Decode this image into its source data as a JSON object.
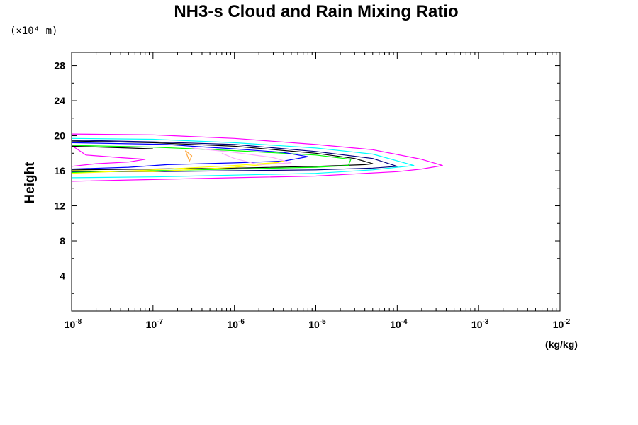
{
  "chart_data": {
    "type": "line",
    "title": "NH3-s Cloud and Rain Mixing Ratio",
    "y_unit_note": "(×10⁴ m)",
    "ylabel": "Height",
    "xlabel": "(kg/kg)",
    "x_scale": "log",
    "xlim": [
      1e-08,
      0.01
    ],
    "ylim": [
      0,
      29.5
    ],
    "x_ticks": [
      {
        "value": 1e-08,
        "base": "10",
        "exp": "-8"
      },
      {
        "value": 1e-07,
        "base": "10",
        "exp": "-7"
      },
      {
        "value": 1e-06,
        "base": "10",
        "exp": "-6"
      },
      {
        "value": 1e-05,
        "base": "10",
        "exp": "-5"
      },
      {
        "value": 0.0001,
        "base": "10",
        "exp": "-4"
      },
      {
        "value": 0.001,
        "base": "10",
        "exp": "-3"
      },
      {
        "value": 0.01,
        "base": "10",
        "exp": "-2"
      }
    ],
    "y_ticks": [
      "4",
      "8",
      "12",
      "16",
      "20",
      "24",
      "28"
    ],
    "y_tick_values": [
      4,
      8,
      12,
      16,
      20,
      24,
      28
    ],
    "series": [
      {
        "color": "#ff00ff",
        "x": [
          1e-08,
          1e-07,
          1e-06,
          1e-05,
          5e-05,
          0.0002,
          0.00036,
          0.0002,
          0.0001,
          1e-05,
          1e-06,
          1e-07,
          1e-08
        ],
        "y": [
          20.2,
          20.1,
          19.7,
          19.0,
          18.4,
          17.3,
          16.6,
          16.2,
          15.9,
          15.4,
          15.2,
          15.0,
          14.8
        ]
      },
      {
        "color": "#00ffff",
        "x": [
          1e-08,
          1e-07,
          1e-06,
          1e-05,
          5e-05,
          0.00016,
          5e-05,
          1e-05,
          1e-06,
          1e-07,
          1e-08
        ],
        "y": [
          19.7,
          19.6,
          19.2,
          18.6,
          17.9,
          16.6,
          16.1,
          15.7,
          15.5,
          15.3,
          15.2
        ]
      },
      {
        "color": "#000080",
        "x": [
          1e-08,
          1e-07,
          1e-06,
          1e-05,
          5e-05,
          0.0001,
          5e-05,
          1e-05,
          1e-06,
          1e-07,
          1e-08
        ],
        "y": [
          19.5,
          19.3,
          19.0,
          18.2,
          17.4,
          16.5,
          16.3,
          16.1,
          16.0,
          15.9,
          15.9
        ]
      },
      {
        "color": "#000000",
        "x": [
          1e-08,
          1e-07,
          1e-06,
          1e-05,
          3e-05,
          5e-05,
          4e-05,
          1e-05,
          1e-06,
          1e-07,
          1e-08
        ],
        "y": [
          19.4,
          19.2,
          18.8,
          18.0,
          17.4,
          16.8,
          16.7,
          16.5,
          16.3,
          16.2,
          16.1
        ]
      },
      {
        "color": "#00ff00",
        "x": [
          1e-08,
          1e-07,
          1e-06,
          1e-05,
          2.7e-05,
          2.5e-05,
          1e-05,
          1e-06,
          1e-07,
          1e-08
        ],
        "y": [
          18.9,
          18.7,
          18.3,
          17.8,
          17.3,
          16.6,
          16.4,
          16.2,
          16.0,
          15.8
        ]
      },
      {
        "color": "#0000ff",
        "x": [
          1e-08,
          1.5e-07,
          3e-07,
          1e-06,
          4e-06,
          8e-06,
          4e-06,
          1e-06,
          1.5e-07,
          5e-08,
          1e-08
        ],
        "y": [
          19.2,
          19.0,
          18.8,
          18.5,
          18.1,
          17.6,
          17.1,
          16.9,
          16.7,
          16.4,
          16.2
        ]
      },
      {
        "color": "#ffff00",
        "x": [
          1e-08,
          1e-07,
          2.5e-07,
          1e-06,
          3e-06,
          4e-06,
          3e-06,
          1e-06,
          2.5e-07,
          1e-07,
          1e-08
        ],
        "y": [
          16.0,
          15.9,
          16.1,
          16.4,
          16.8,
          17.1,
          16.9,
          16.6,
          16.3,
          16.1,
          15.7
        ]
      },
      {
        "color": "#ffaa44",
        "x": [
          2.5e-07,
          3e-07,
          2.8e-07,
          2.5e-07
        ],
        "y": [
          18.3,
          17.7,
          17.1,
          18.3
        ]
      },
      {
        "color": "#ffaaff",
        "x": [
          3e-07,
          1e-06,
          3e-06,
          5e-06,
          2e-06,
          1e-06,
          7e-07
        ],
        "y": [
          18.6,
          18.1,
          17.5,
          16.9,
          16.7,
          17.4,
          18.0
        ]
      },
      {
        "color": "#ff00ff",
        "x": [
          1e-08,
          1.5e-08,
          4e-08,
          8e-08,
          5e-08,
          2e-08,
          1e-08
        ],
        "y": [
          18.9,
          17.8,
          17.5,
          17.3,
          17.0,
          16.8,
          16.5
        ]
      },
      {
        "color": "#000000",
        "x": [
          1e-08,
          5e-08,
          1e-07
        ],
        "y": [
          18.8,
          18.6,
          18.5
        ]
      }
    ]
  }
}
